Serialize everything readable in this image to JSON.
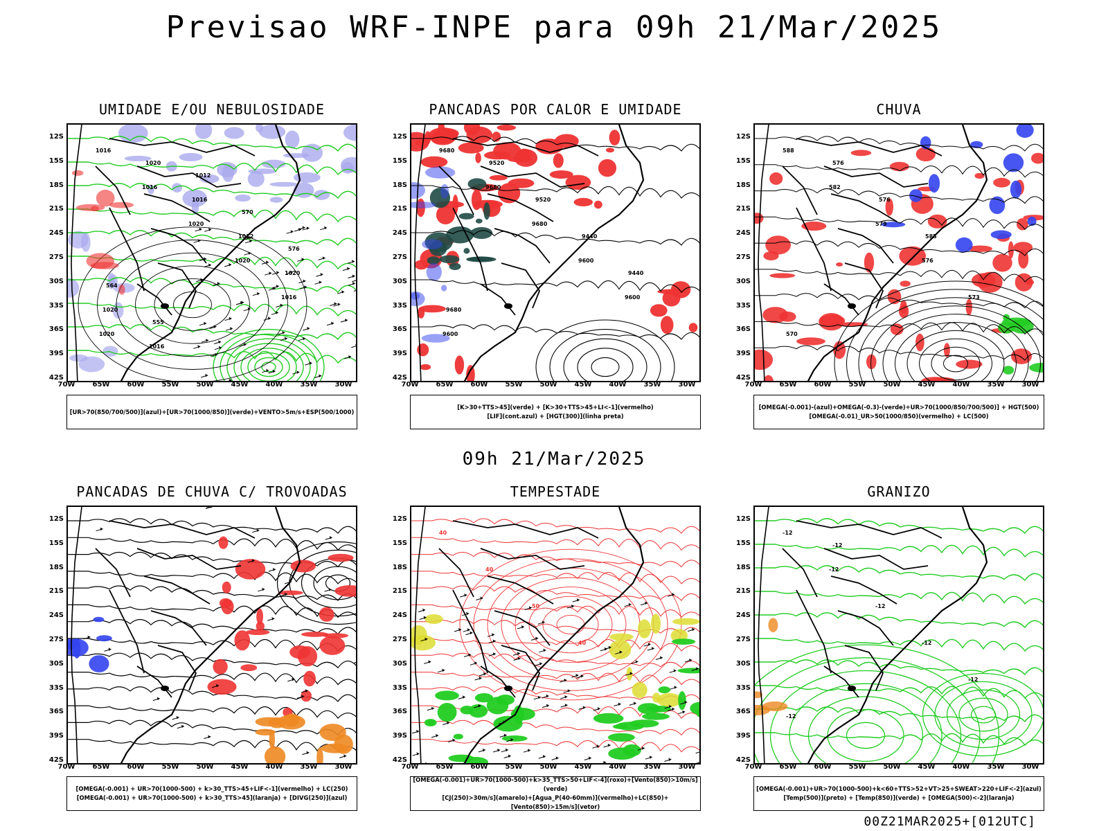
{
  "main_title": "Previsao WRF-INPE  para 09h 21/Mar/2025",
  "mid_date": "09h 21/Mar/2025",
  "footer_stamp": "00Z21MAR2025+[012UTC]",
  "lat_ticks": [
    "12S",
    "15S",
    "18S",
    "21S",
    "24S",
    "27S",
    "30S",
    "33S",
    "36S",
    "39S",
    "42S"
  ],
  "lon_ticks": [
    "70W",
    "65W",
    "60W",
    "55W",
    "50W",
    "45W",
    "40W",
    "35W",
    "30W"
  ],
  "colors": {
    "blue": "#3344ee",
    "green": "#22cc22",
    "red": "#ee3333",
    "lavender": "#aaaaee",
    "darkteal": "#1f4a44",
    "yellow": "#dddd33",
    "orange": "#ee8822",
    "black": "#000000"
  },
  "panels": [
    {
      "title": "UMIDADE E/OU NEBULOSIDADE",
      "legend": [
        "[UR>70(850/700/500)](azul)+[UR>70(1000/850)](verde)+VENTO>5m/s+ESP(500/1000)"
      ],
      "labels": [
        "1016",
        "1016",
        "1020",
        "1020",
        "1016",
        "1020",
        "1020",
        "1016",
        "1012",
        "1020",
        "1020",
        "1016",
        "1012",
        "570",
        "576",
        "564",
        "555"
      ]
    },
    {
      "title": "PANCADAS POR CALOR E UMIDADE",
      "legend": [
        "[K>30+TTS>45](verde) + [K>30+TTS>45+LI<-1](vermelho)",
        "[LIF](cont.azul) + [HGT(300)](linha preta)"
      ],
      "labels": [
        "9680",
        "9680",
        "9680",
        "9600",
        "9600",
        "9600",
        "9520",
        "9520",
        "9440",
        "9440",
        "9680"
      ]
    },
    {
      "title": "CHUVA",
      "legend": [
        "[OMEGA(-0.001)-(azul)+OMEGA(-0.3)-(verde)+UR>70(1000/850/700/500)] + HGT(500)",
        "[OMEGA(-0.01)_UR>50(1000/850)(vermelho) + LC(500)"
      ],
      "labels": [
        "588",
        "582",
        "579",
        "576",
        "573",
        "570",
        "576",
        "576",
        "585"
      ]
    },
    {
      "title": "PANCADAS DE CHUVA C/ TROVOADAS",
      "legend": [
        "[OMEGA(-0.001) + UR>70(1000-500) + k>30_TTS>45+LIF<-1](vermelho) + LC(250)",
        "[OMEGA(-0.001) + UR>70(1000-500) + k>30_TTS>45](laranja) + [DIVG(250)](azul)"
      ],
      "labels": []
    },
    {
      "title": "TEMPESTADE",
      "legend": [
        "[OMEGA(-0.001)+UR>70(1000-500)+k>35_TTS>50+LIF<-4](roxo)+[Vento(850)>10m/s](verde)",
        "[CJ(250)>30m/s](amarelo)+[Agua_P(40-60mm)](vermelho)+LC(850)+[Vento(850)>15m/s](vetor)"
      ],
      "labels": [
        "40",
        "40",
        "50",
        "40"
      ]
    },
    {
      "title": "GRANIZO",
      "legend": [
        "[OMEGA(-0.001)+UR>70(1000-500)+k<60+TTS>52+VT>25+SWEAT>220+LIF<-2](azul)",
        "[Temp(500)](preto) + [Temp(850)](verde) + [OMEGA(500)<-2](laranja)"
      ],
      "labels": [
        "-12",
        "-12",
        "-12",
        "-12",
        "-12",
        "-12",
        "-12"
      ]
    }
  ]
}
